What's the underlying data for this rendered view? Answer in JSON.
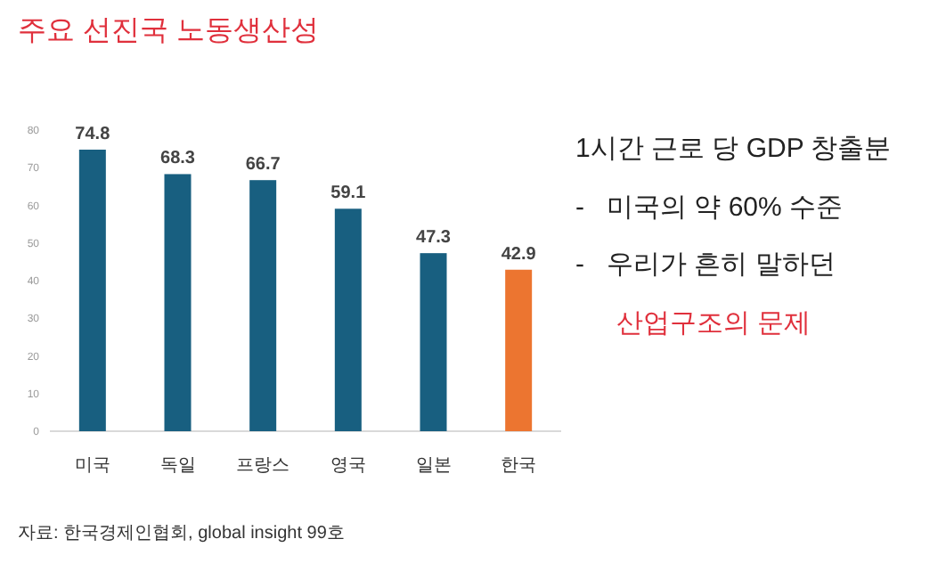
{
  "chart_data": {
    "type": "bar",
    "title": "주요 선진국 노동생산성",
    "categories": [
      "미국",
      "독일",
      "프랑스",
      "영국",
      "일본",
      "한국"
    ],
    "values": [
      74.8,
      68.3,
      66.7,
      59.1,
      47.3,
      42.9
    ],
    "colors": [
      "#185f80",
      "#185f80",
      "#185f80",
      "#185f80",
      "#185f80",
      "#ec7530"
    ],
    "ylim": [
      0,
      80
    ],
    "yticks": [
      0,
      10,
      20,
      30,
      40,
      50,
      60,
      70,
      80
    ],
    "data_labels": true,
    "grid": false,
    "annotations": [
      "1시간 근로 당 GDP 창출분",
      "-   미국의 약 60% 수준",
      "-   우리가 흔히 말하던",
      "산업구조의 문제",
      "자료: 한국경제인협회, global insight 99호"
    ]
  }
}
